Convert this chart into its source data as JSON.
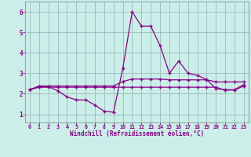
{
  "xlabel": "Windchill (Refroidissement éolien,°C)",
  "bg_color": "#cceee8",
  "line_color": "#880088",
  "grid_color": "#99bbbb",
  "axis_color": "#88aaaa",
  "tick_color": "#880088",
  "x_ticks": [
    0,
    1,
    2,
    3,
    4,
    5,
    6,
    7,
    8,
    9,
    10,
    11,
    12,
    13,
    14,
    15,
    16,
    17,
    18,
    19,
    20,
    21,
    22,
    23
  ],
  "y_ticks": [
    1,
    2,
    3,
    4,
    5,
    6
  ],
  "ylim": [
    0.6,
    6.5
  ],
  "xlim": [
    -0.5,
    23.5
  ],
  "series_main": [
    2.2,
    2.35,
    2.35,
    2.15,
    1.85,
    1.7,
    1.7,
    1.45,
    1.15,
    1.1,
    3.25,
    6.0,
    5.3,
    5.3,
    4.35,
    3.0,
    3.6,
    3.0,
    2.9,
    2.7,
    2.25,
    2.2,
    2.2,
    2.45
  ],
  "series_upper": [
    2.2,
    2.38,
    2.38,
    2.38,
    2.38,
    2.38,
    2.38,
    2.38,
    2.38,
    2.38,
    2.6,
    2.72,
    2.72,
    2.72,
    2.72,
    2.68,
    2.68,
    2.68,
    2.68,
    2.68,
    2.58,
    2.58,
    2.58,
    2.58
  ],
  "series_lower": [
    2.2,
    2.32,
    2.32,
    2.32,
    2.32,
    2.32,
    2.32,
    2.32,
    2.32,
    2.32,
    2.32,
    2.32,
    2.32,
    2.32,
    2.32,
    2.32,
    2.32,
    2.32,
    2.32,
    2.32,
    2.32,
    2.18,
    2.18,
    2.38
  ]
}
